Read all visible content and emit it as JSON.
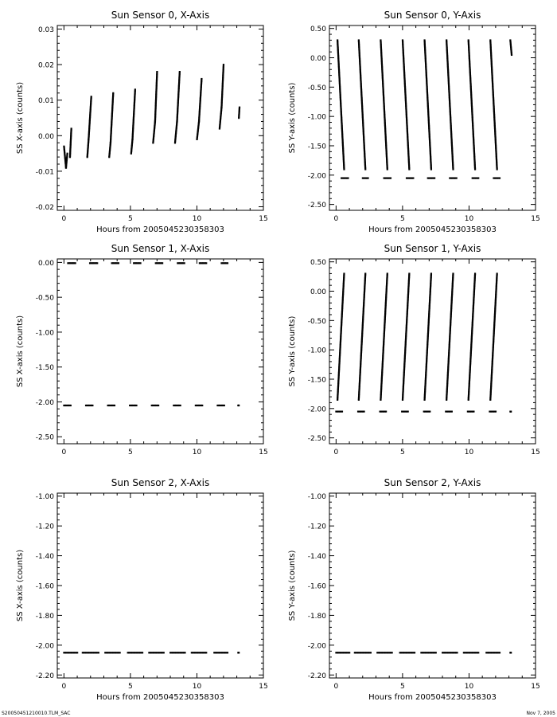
{
  "footer": {
    "file_id": "S20050451210010.TLM_SAC",
    "date": "Nov  7, 2005"
  },
  "chart_data": [
    {
      "type": "scatter",
      "title": "Sun Sensor 0, X-Axis",
      "xlabel": "Hours from 2005045230358303",
      "ylabel": "SS X-axis (counts)",
      "xlim": [
        -0.5,
        15
      ],
      "ylim": [
        -0.021,
        0.031
      ],
      "xticks": [
        0,
        5,
        10,
        15
      ],
      "yticks": [
        -0.02,
        -0.01,
        0.0,
        0.01,
        0.02,
        0.03
      ],
      "ytick_labels": [
        "-0.02",
        "-0.01",
        "0.00",
        "0.01",
        "0.02",
        "0.03"
      ],
      "grid": false,
      "segments": [
        {
          "x": [
            0.0,
            0.15
          ],
          "y": [
            -0.003,
            -0.009
          ]
        },
        {
          "x": [
            0.15,
            0.25
          ],
          "y": [
            -0.009,
            -0.005
          ]
        },
        {
          "x": [
            0.45,
            0.55
          ],
          "y": [
            -0.006,
            0.002
          ]
        },
        {
          "x": [
            1.75,
            1.85
          ],
          "y": [
            -0.006,
            -0.001
          ]
        },
        {
          "x": [
            1.85,
            2.05
          ],
          "y": [
            -0.001,
            0.011
          ]
        },
        {
          "x": [
            3.4,
            3.5
          ],
          "y": [
            -0.006,
            -0.002
          ]
        },
        {
          "x": [
            3.5,
            3.7
          ],
          "y": [
            -0.002,
            0.012
          ]
        },
        {
          "x": [
            5.05,
            5.15
          ],
          "y": [
            -0.005,
            -0.001
          ]
        },
        {
          "x": [
            5.15,
            5.35
          ],
          "y": [
            -0.001,
            0.013
          ]
        },
        {
          "x": [
            6.7,
            6.85
          ],
          "y": [
            -0.002,
            0.004
          ]
        },
        {
          "x": [
            6.85,
            7.0
          ],
          "y": [
            0.004,
            0.018
          ]
        },
        {
          "x": [
            8.35,
            8.5
          ],
          "y": [
            -0.002,
            0.004
          ]
        },
        {
          "x": [
            8.5,
            8.7
          ],
          "y": [
            0.004,
            0.018
          ]
        },
        {
          "x": [
            10.0,
            10.15
          ],
          "y": [
            -0.001,
            0.004
          ]
        },
        {
          "x": [
            10.15,
            10.35
          ],
          "y": [
            0.004,
            0.016
          ]
        },
        {
          "x": [
            11.7,
            11.85
          ],
          "y": [
            0.002,
            0.008
          ]
        },
        {
          "x": [
            11.85,
            12.0
          ],
          "y": [
            0.008,
            0.02
          ]
        },
        {
          "x": [
            13.15,
            13.2
          ],
          "y": [
            0.005,
            0.008
          ]
        }
      ]
    },
    {
      "type": "scatter",
      "title": "Sun Sensor 0, Y-Axis",
      "xlabel": "Hours from 2005045230358303",
      "ylabel": "SS Y-axis (counts)",
      "xlim": [
        -0.5,
        15
      ],
      "ylim": [
        -2.6,
        0.55
      ],
      "xticks": [
        0,
        5,
        10,
        15
      ],
      "yticks": [
        -2.5,
        -2.0,
        -1.5,
        -1.0,
        -0.5,
        0.0,
        0.5
      ],
      "ytick_labels": [
        "-2.50",
        "-2.00",
        "-1.50",
        "-1.00",
        "-0.50",
        "0.00",
        "0.50"
      ],
      "grid": false,
      "segments": [
        {
          "x": [
            0.1,
            0.6
          ],
          "y": [
            0.3,
            -1.9
          ]
        },
        {
          "x": [
            1.7,
            2.2
          ],
          "y": [
            0.3,
            -1.9
          ]
        },
        {
          "x": [
            3.35,
            3.85
          ],
          "y": [
            0.3,
            -1.9
          ]
        },
        {
          "x": [
            5.0,
            5.5
          ],
          "y": [
            0.3,
            -1.9
          ]
        },
        {
          "x": [
            6.65,
            7.15
          ],
          "y": [
            0.3,
            -1.9
          ]
        },
        {
          "x": [
            8.3,
            8.8
          ],
          "y": [
            0.3,
            -1.9
          ]
        },
        {
          "x": [
            9.95,
            10.45
          ],
          "y": [
            0.3,
            -1.9
          ]
        },
        {
          "x": [
            11.6,
            12.1
          ],
          "y": [
            0.3,
            -1.9
          ]
        },
        {
          "x": [
            13.1,
            13.2
          ],
          "y": [
            0.3,
            0.05
          ]
        },
        {
          "x": [
            0.4,
            0.9
          ],
          "y": [
            -2.05,
            -2.05
          ]
        },
        {
          "x": [
            2.0,
            2.4
          ],
          "y": [
            -2.05,
            -2.05
          ]
        },
        {
          "x": [
            3.6,
            4.1
          ],
          "y": [
            -2.05,
            -2.05
          ]
        },
        {
          "x": [
            5.3,
            5.8
          ],
          "y": [
            -2.05,
            -2.05
          ]
        },
        {
          "x": [
            6.9,
            7.4
          ],
          "y": [
            -2.05,
            -2.05
          ]
        },
        {
          "x": [
            8.55,
            9.05
          ],
          "y": [
            -2.05,
            -2.05
          ]
        },
        {
          "x": [
            10.25,
            10.7
          ],
          "y": [
            -2.05,
            -2.05
          ]
        },
        {
          "x": [
            11.85,
            12.3
          ],
          "y": [
            -2.05,
            -2.05
          ]
        }
      ]
    },
    {
      "type": "scatter",
      "title": "Sun Sensor 1, X-Axis",
      "xlabel": "",
      "ylabel": "SS X-axis (counts)",
      "xlim": [
        -0.5,
        15
      ],
      "ylim": [
        -2.6,
        0.05
      ],
      "xticks": [
        0,
        5,
        10,
        15
      ],
      "yticks": [
        -2.5,
        -2.0,
        -1.5,
        -1.0,
        -0.5,
        0.0
      ],
      "ytick_labels": [
        "-2.50",
        "-2.00",
        "-1.50",
        "-1.00",
        "-0.50",
        "0.00"
      ],
      "grid": false,
      "segments": [
        {
          "x": [
            0.3,
            0.85
          ],
          "y": [
            -0.01,
            -0.01
          ]
        },
        {
          "x": [
            1.95,
            2.5
          ],
          "y": [
            -0.01,
            -0.01
          ]
        },
        {
          "x": [
            3.6,
            4.1
          ],
          "y": [
            -0.01,
            -0.01
          ]
        },
        {
          "x": [
            5.25,
            5.75
          ],
          "y": [
            -0.01,
            -0.01
          ]
        },
        {
          "x": [
            6.9,
            7.4
          ],
          "y": [
            -0.01,
            -0.01
          ]
        },
        {
          "x": [
            8.55,
            9.05
          ],
          "y": [
            -0.01,
            -0.01
          ]
        },
        {
          "x": [
            10.2,
            10.7
          ],
          "y": [
            -0.01,
            -0.01
          ]
        },
        {
          "x": [
            11.85,
            12.3
          ],
          "y": [
            -0.01,
            -0.01
          ]
        },
        {
          "x": [
            0.0,
            0.5
          ],
          "y": [
            -2.05,
            -2.05
          ]
        },
        {
          "x": [
            1.65,
            2.15
          ],
          "y": [
            -2.05,
            -2.05
          ]
        },
        {
          "x": [
            3.3,
            3.8
          ],
          "y": [
            -2.05,
            -2.05
          ]
        },
        {
          "x": [
            4.95,
            5.45
          ],
          "y": [
            -2.05,
            -2.05
          ]
        },
        {
          "x": [
            6.6,
            7.1
          ],
          "y": [
            -2.05,
            -2.05
          ]
        },
        {
          "x": [
            8.25,
            8.75
          ],
          "y": [
            -2.05,
            -2.05
          ]
        },
        {
          "x": [
            9.9,
            10.4
          ],
          "y": [
            -2.05,
            -2.05
          ]
        },
        {
          "x": [
            11.55,
            12.05
          ],
          "y": [
            -2.05,
            -2.05
          ]
        },
        {
          "x": [
            13.1,
            13.15
          ],
          "y": [
            -2.05,
            -2.05
          ]
        }
      ]
    },
    {
      "type": "scatter",
      "title": "Sun Sensor 1, Y-Axis",
      "xlabel": "",
      "ylabel": "SS Y-axis (counts)",
      "xlim": [
        -0.5,
        15
      ],
      "ylim": [
        -2.6,
        0.55
      ],
      "xticks": [
        0,
        5,
        10,
        15
      ],
      "yticks": [
        -2.5,
        -2.0,
        -1.5,
        -1.0,
        -0.5,
        0.0,
        0.5
      ],
      "ytick_labels": [
        "-2.50",
        "-2.00",
        "-1.50",
        "-1.00",
        "-0.50",
        "0.00",
        "0.50"
      ],
      "grid": false,
      "segments": [
        {
          "x": [
            0.1,
            0.6
          ],
          "y": [
            -1.85,
            0.3
          ]
        },
        {
          "x": [
            1.7,
            2.2
          ],
          "y": [
            -1.85,
            0.3
          ]
        },
        {
          "x": [
            3.35,
            3.85
          ],
          "y": [
            -1.85,
            0.3
          ]
        },
        {
          "x": [
            5.0,
            5.5
          ],
          "y": [
            -1.85,
            0.3
          ]
        },
        {
          "x": [
            6.65,
            7.15
          ],
          "y": [
            -1.85,
            0.3
          ]
        },
        {
          "x": [
            8.3,
            8.8
          ],
          "y": [
            -1.85,
            0.3
          ]
        },
        {
          "x": [
            9.95,
            10.45
          ],
          "y": [
            -1.85,
            0.3
          ]
        },
        {
          "x": [
            11.6,
            12.1
          ],
          "y": [
            -1.85,
            0.3
          ]
        },
        {
          "x": [
            0.0,
            0.45
          ],
          "y": [
            -2.05,
            -2.05
          ]
        },
        {
          "x": [
            1.65,
            2.1
          ],
          "y": [
            -2.05,
            -2.05
          ]
        },
        {
          "x": [
            3.3,
            3.75
          ],
          "y": [
            -2.05,
            -2.05
          ]
        },
        {
          "x": [
            4.95,
            5.4
          ],
          "y": [
            -2.05,
            -2.05
          ]
        },
        {
          "x": [
            6.6,
            7.05
          ],
          "y": [
            -2.05,
            -2.05
          ]
        },
        {
          "x": [
            8.25,
            8.7
          ],
          "y": [
            -2.05,
            -2.05
          ]
        },
        {
          "x": [
            9.9,
            10.35
          ],
          "y": [
            -2.05,
            -2.05
          ]
        },
        {
          "x": [
            11.55,
            12.0
          ],
          "y": [
            -2.05,
            -2.05
          ]
        },
        {
          "x": [
            13.1,
            13.15
          ],
          "y": [
            -2.05,
            -2.05
          ]
        }
      ]
    },
    {
      "type": "scatter",
      "title": "Sun Sensor 2, X-Axis",
      "xlabel": "Hours from 2005045230358303",
      "ylabel": "SS X-axis (counts)",
      "xlim": [
        -0.5,
        15
      ],
      "ylim": [
        -2.22,
        -0.98
      ],
      "xticks": [
        0,
        5,
        10,
        15
      ],
      "yticks": [
        -2.2,
        -2.0,
        -1.8,
        -1.6,
        -1.4,
        -1.2,
        -1.0
      ],
      "ytick_labels": [
        "-2.20",
        "-2.00",
        "-1.80",
        "-1.60",
        "-1.40",
        "-1.20",
        "-1.00"
      ],
      "grid": false,
      "segments": [
        {
          "x": [
            0.0,
            1.0
          ],
          "y": [
            -2.05,
            -2.05
          ]
        },
        {
          "x": [
            1.4,
            2.6
          ],
          "y": [
            -2.05,
            -2.05
          ]
        },
        {
          "x": [
            3.1,
            4.2
          ],
          "y": [
            -2.05,
            -2.05
          ]
        },
        {
          "x": [
            4.8,
            5.9
          ],
          "y": [
            -2.05,
            -2.05
          ]
        },
        {
          "x": [
            6.4,
            7.5
          ],
          "y": [
            -2.05,
            -2.05
          ]
        },
        {
          "x": [
            8.0,
            9.1
          ],
          "y": [
            -2.05,
            -2.05
          ]
        },
        {
          "x": [
            9.6,
            10.7
          ],
          "y": [
            -2.05,
            -2.05
          ]
        },
        {
          "x": [
            11.3,
            12.3
          ],
          "y": [
            -2.05,
            -2.05
          ]
        },
        {
          "x": [
            13.1,
            13.15
          ],
          "y": [
            -2.05,
            -2.05
          ]
        }
      ]
    },
    {
      "type": "scatter",
      "title": "Sun Sensor 2, Y-Axis",
      "xlabel": "Hours from 2005045230358303",
      "ylabel": "SS Y-axis (counts)",
      "xlim": [
        -0.5,
        15
      ],
      "ylim": [
        -2.22,
        -0.98
      ],
      "xticks": [
        0,
        5,
        10,
        15
      ],
      "yticks": [
        -2.2,
        -2.0,
        -1.8,
        -1.6,
        -1.4,
        -1.2,
        -1.0
      ],
      "ytick_labels": [
        "-2.20",
        "-2.00",
        "-1.80",
        "-1.60",
        "-1.40",
        "-1.20",
        "-1.00"
      ],
      "grid": false,
      "segments": [
        {
          "x": [
            0.0,
            1.0
          ],
          "y": [
            -2.05,
            -2.05
          ]
        },
        {
          "x": [
            1.4,
            2.6
          ],
          "y": [
            -2.05,
            -2.05
          ]
        },
        {
          "x": [
            3.1,
            4.2
          ],
          "y": [
            -2.05,
            -2.05
          ]
        },
        {
          "x": [
            4.8,
            5.9
          ],
          "y": [
            -2.05,
            -2.05
          ]
        },
        {
          "x": [
            6.4,
            7.5
          ],
          "y": [
            -2.05,
            -2.05
          ]
        },
        {
          "x": [
            8.0,
            9.1
          ],
          "y": [
            -2.05,
            -2.05
          ]
        },
        {
          "x": [
            9.6,
            10.7
          ],
          "y": [
            -2.05,
            -2.05
          ]
        },
        {
          "x": [
            11.3,
            12.3
          ],
          "y": [
            -2.05,
            -2.05
          ]
        },
        {
          "x": [
            13.1,
            13.15
          ],
          "y": [
            -2.05,
            -2.05
          ]
        }
      ]
    }
  ]
}
